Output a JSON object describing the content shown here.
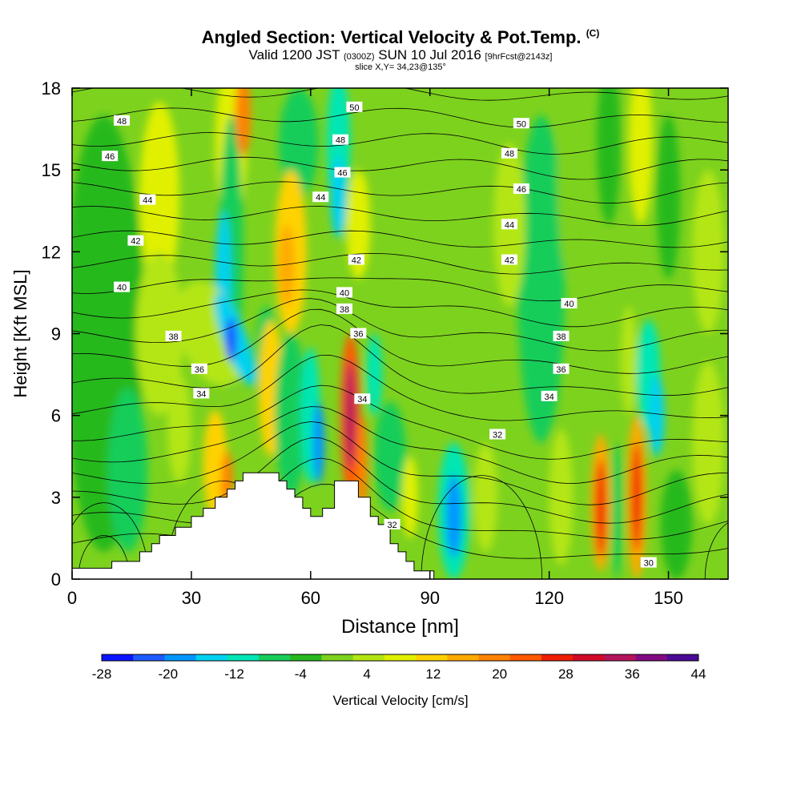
{
  "header": {
    "title": "Angled Section: Vertical Velocity & Pot.Temp.",
    "title_tag": "(C)",
    "valid_label": "Valid 1200 JST",
    "valid_utc": "(0300Z)",
    "valid_date": "SUN 10 Jul 2016",
    "forecast": "[9hrFcst@2143z]",
    "slice": "slice X,Y= 34,23@135°"
  },
  "chart_data": {
    "type": "heatmap",
    "xlabel": "Distance [nm]",
    "ylabel": "Height [Kft MSL]",
    "xlim": [
      0,
      165
    ],
    "ylim": [
      0,
      18
    ],
    "x_ticks": [
      "0",
      "30",
      "60",
      "90",
      "120",
      "150"
    ],
    "y_ticks": [
      "0",
      "3",
      "6",
      "9",
      "12",
      "15",
      "18"
    ],
    "colorbar": {
      "label": "Vertical Velocity [cm/s]",
      "levels": [
        -28,
        -24,
        -20,
        -16,
        -12,
        -8,
        -4,
        0,
        4,
        8,
        12,
        16,
        20,
        24,
        28,
        32,
        36,
        40,
        44
      ],
      "tick_labels": [
        "-28",
        "-20",
        "-12",
        "-4",
        "4",
        "12",
        "20",
        "28",
        "36",
        "44"
      ],
      "colors": [
        "#0a14ff",
        "#1e5aff",
        "#0096ff",
        "#00d2f0",
        "#00e6b4",
        "#19cd5a",
        "#28b91e",
        "#7dd21e",
        "#b4e614",
        "#e1f000",
        "#ffd200",
        "#ffaa00",
        "#ff8200",
        "#ff5a00",
        "#f01e00",
        "#d20a28",
        "#b4145a",
        "#820a82",
        "#4b0a96"
      ]
    },
    "terrain_kft": [
      [
        0,
        0.4
      ],
      [
        10,
        0.4
      ],
      [
        10,
        0.65
      ],
      [
        17,
        0.65
      ],
      [
        17,
        1
      ],
      [
        20,
        1
      ],
      [
        20,
        1.3
      ],
      [
        22,
        1.3
      ],
      [
        22,
        1.6
      ],
      [
        26,
        1.6
      ],
      [
        26,
        1.9
      ],
      [
        30,
        1.9
      ],
      [
        30,
        2.3
      ],
      [
        33,
        2.3
      ],
      [
        33,
        2.6
      ],
      [
        36,
        2.6
      ],
      [
        36,
        3
      ],
      [
        39,
        3
      ],
      [
        39,
        3.3
      ],
      [
        41,
        3.3
      ],
      [
        41,
        3.6
      ],
      [
        43,
        3.6
      ],
      [
        43,
        3.9
      ],
      [
        52,
        3.9
      ],
      [
        52,
        3.6
      ],
      [
        54,
        3.6
      ],
      [
        54,
        3.3
      ],
      [
        56,
        3.3
      ],
      [
        56,
        3
      ],
      [
        58,
        3
      ],
      [
        58,
        2.6
      ],
      [
        60,
        2.6
      ],
      [
        60,
        2.3
      ],
      [
        63,
        2.3
      ],
      [
        63,
        2.6
      ],
      [
        66,
        2.6
      ],
      [
        66,
        3.6
      ],
      [
        72,
        3.6
      ],
      [
        72,
        3
      ],
      [
        75,
        3
      ],
      [
        75,
        2.3
      ],
      [
        77,
        2.3
      ],
      [
        77,
        2
      ],
      [
        80,
        2
      ],
      [
        80,
        1.3
      ],
      [
        82,
        1.3
      ],
      [
        82,
        1
      ],
      [
        84,
        1
      ],
      [
        84,
        0.65
      ],
      [
        86,
        0.65
      ],
      [
        86,
        0.3
      ],
      [
        91,
        0.3
      ],
      [
        91,
        0
      ],
      [
        165,
        0
      ]
    ],
    "theta_label_values": [
      30,
      32,
      34,
      36,
      38,
      40,
      42,
      44,
      46,
      48,
      50
    ],
    "contour_labels": [
      {
        "x": 12.5,
        "y": 16.8,
        "text": "48"
      },
      {
        "x": 9.5,
        "y": 15.5,
        "text": "46"
      },
      {
        "x": 19,
        "y": 13.9,
        "text": "44"
      },
      {
        "x": 16,
        "y": 12.4,
        "text": "42"
      },
      {
        "x": 12.5,
        "y": 10.7,
        "text": "40"
      },
      {
        "x": 25.5,
        "y": 8.9,
        "text": "38"
      },
      {
        "x": 32,
        "y": 7.7,
        "text": "36"
      },
      {
        "x": 32.5,
        "y": 6.8,
        "text": "34"
      },
      {
        "x": 71,
        "y": 17.3,
        "text": "50"
      },
      {
        "x": 67.5,
        "y": 16.1,
        "text": "48"
      },
      {
        "x": 68,
        "y": 14.9,
        "text": "46"
      },
      {
        "x": 62.5,
        "y": 14.0,
        "text": "44"
      },
      {
        "x": 71.5,
        "y": 11.7,
        "text": "42"
      },
      {
        "x": 68.5,
        "y": 10.5,
        "text": "40"
      },
      {
        "x": 68.5,
        "y": 9.9,
        "text": "38"
      },
      {
        "x": 72,
        "y": 9.0,
        "text": "36"
      },
      {
        "x": 73,
        "y": 6.6,
        "text": "34"
      },
      {
        "x": 80.5,
        "y": 2.0,
        "text": "32"
      },
      {
        "x": 113,
        "y": 16.7,
        "text": "50"
      },
      {
        "x": 110,
        "y": 15.6,
        "text": "48"
      },
      {
        "x": 113,
        "y": 14.3,
        "text": "46"
      },
      {
        "x": 110,
        "y": 13.0,
        "text": "44"
      },
      {
        "x": 110,
        "y": 11.7,
        "text": "42"
      },
      {
        "x": 125,
        "y": 10.1,
        "text": "40"
      },
      {
        "x": 123,
        "y": 8.9,
        "text": "38"
      },
      {
        "x": 123,
        "y": 7.7,
        "text": "36"
      },
      {
        "x": 120,
        "y": 6.7,
        "text": "34"
      },
      {
        "x": 107,
        "y": 5.3,
        "text": "32"
      },
      {
        "x": 145,
        "y": 0.6,
        "text": "30"
      }
    ]
  }
}
